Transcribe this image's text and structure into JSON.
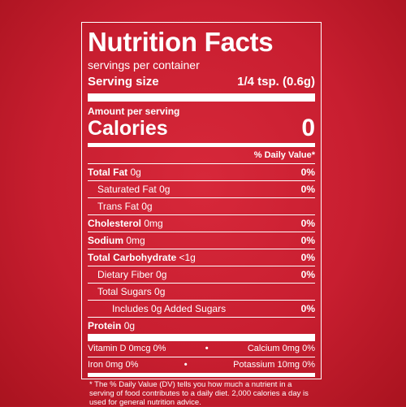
{
  "label": {
    "title": "Nutrition Facts",
    "servings_per_container": "servings per container",
    "serving_size_label": "Serving size",
    "serving_size_value": "1/4 tsp. (0.6g)",
    "amount_per_serving": "Amount per serving",
    "calories_label": "Calories",
    "calories_value": "0",
    "daily_value_header": "% Daily Value*",
    "nutrients": [
      {
        "name": "Total Fat",
        "amount": "0g",
        "dv": "0%"
      },
      {
        "name": "Saturated Fat",
        "amount": "0g",
        "dv": "0%"
      },
      {
        "name": "Trans Fat",
        "amount": "0g",
        "dv": ""
      },
      {
        "name": "Cholesterol",
        "amount": "0mg",
        "dv": "0%"
      },
      {
        "name": "Sodium",
        "amount": "0mg",
        "dv": "0%"
      },
      {
        "name": "Total Carbohydrate",
        "amount": "<1g",
        "dv": "0%"
      },
      {
        "name": "Dietary Fiber",
        "amount": "0g",
        "dv": "0%"
      },
      {
        "name": "Total Sugars",
        "amount": "0g",
        "dv": ""
      },
      {
        "name": "Includes 0g Added Sugars",
        "amount": "",
        "dv": "0%"
      },
      {
        "name": "Protein",
        "amount": "0g",
        "dv": ""
      }
    ],
    "vitamins": [
      {
        "left": "Vitamin D 0mcg 0%",
        "right": "Calcium 0mg 0%"
      },
      {
        "left": "Iron 0mg 0%",
        "right": "Potassium 10mg 0%"
      }
    ],
    "bullet": "•",
    "footnote": "* The % Daily Value (DV) tells you how much a nutrient in a serving of food contributes to a daily diet. 2,000 calories a day is used for general nutrition advice."
  },
  "colors": {
    "background": "#c81e30",
    "text": "#ffffff"
  }
}
